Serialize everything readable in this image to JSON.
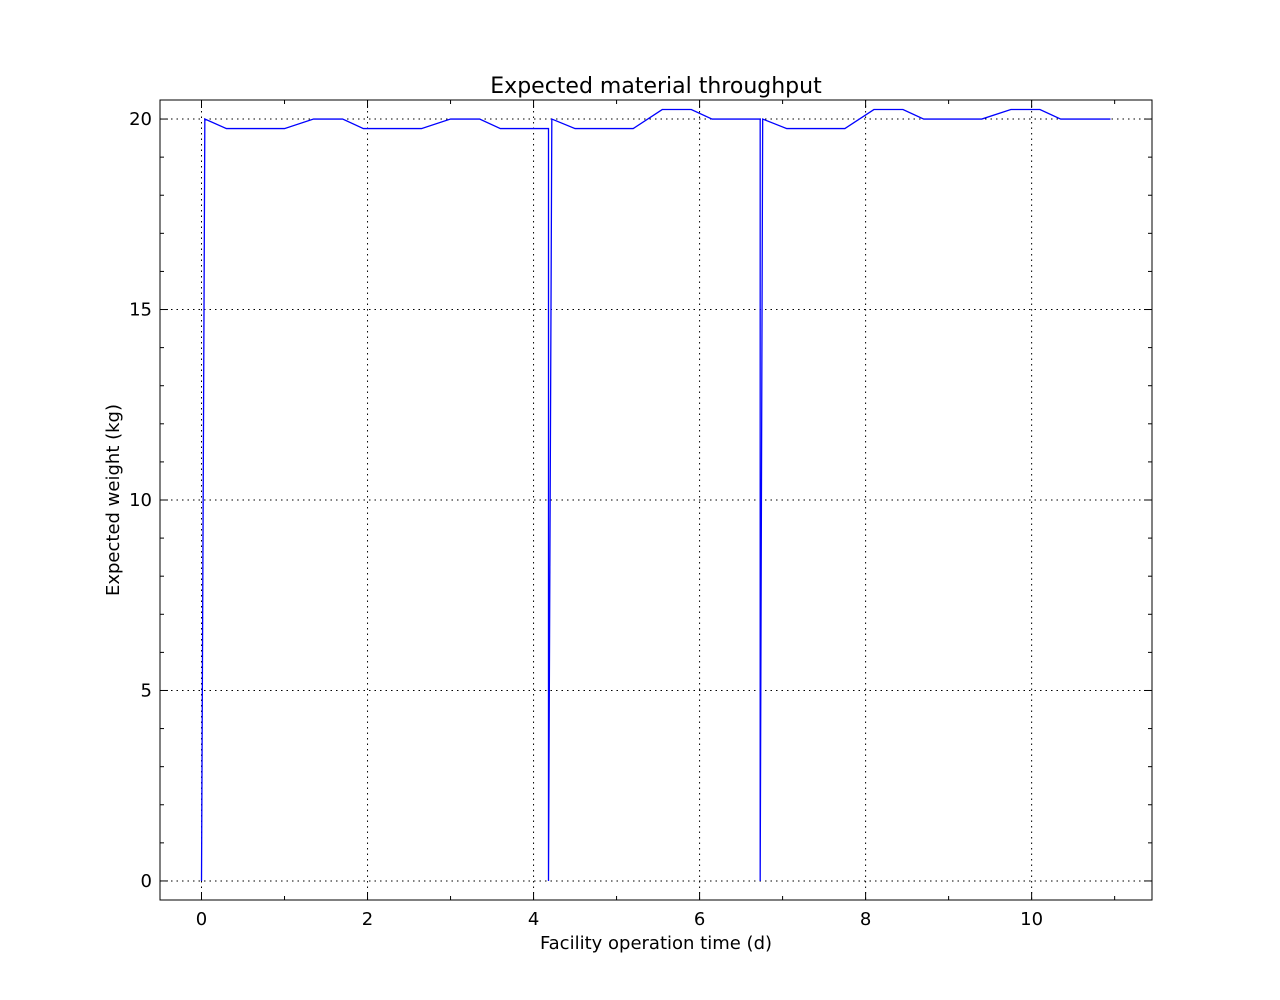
{
  "chart_data": {
    "type": "line",
    "title": "Expected material throughput",
    "xlabel": "Facility operation time (d)",
    "ylabel": "Expected weight (kg)",
    "xlim": [
      -0.5,
      11.45
    ],
    "ylim": [
      -0.5,
      20.5
    ],
    "xticks": [
      0,
      2,
      4,
      6,
      8,
      10
    ],
    "yticks": [
      0,
      5,
      10,
      15,
      20
    ],
    "xticks_minor": [
      1,
      3,
      5,
      7,
      9,
      11
    ],
    "yticks_minor": [
      1,
      2,
      3,
      4,
      6,
      7,
      8,
      9,
      11,
      12,
      13,
      14,
      16,
      17,
      18,
      19
    ],
    "grid": true,
    "color": "#0000ff",
    "series": [
      {
        "x": [
          0,
          0.04,
          0.3,
          1.0,
          1.35,
          1.7,
          1.95,
          2.65,
          3.0,
          3.35,
          3.6,
          4.18,
          4.18,
          4.22,
          4.5,
          5.2,
          5.55,
          5.9,
          6.15,
          6.73,
          6.73,
          6.76,
          7.05,
          7.75,
          8.1,
          8.45,
          8.7,
          9.4,
          9.75,
          10.1,
          10.35,
          10.95
        ],
        "y": [
          0,
          20,
          19.75,
          19.75,
          20,
          20,
          19.75,
          19.75,
          20,
          20,
          19.75,
          19.75,
          0,
          20,
          19.75,
          19.75,
          20.25,
          20.25,
          20,
          20,
          0,
          20,
          19.75,
          19.75,
          20.25,
          20.25,
          20,
          20,
          20.25,
          20.25,
          20,
          20
        ]
      }
    ]
  }
}
